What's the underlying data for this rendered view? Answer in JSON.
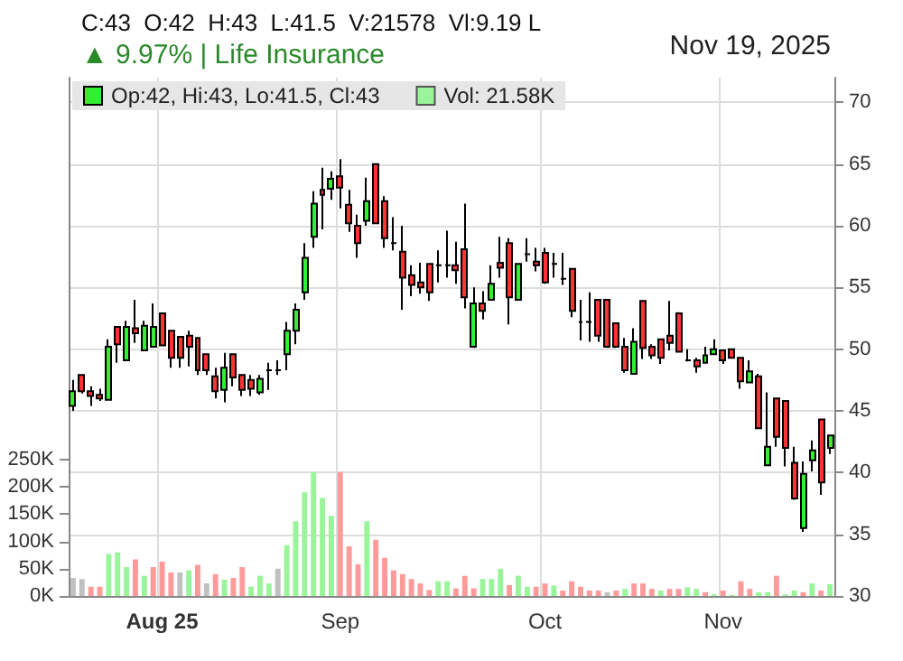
{
  "chart_data": {
    "type": "candlestick",
    "title": "C:43  O:42  H:43  L:41.5  V:21578  Vl:9.19 L",
    "subtitle": "▲ 9.97% | Life Insurance",
    "annotations": [
      "Nov 19, 2025"
    ],
    "categories": [
      null,
      null,
      null,
      null,
      null,
      null,
      null,
      null,
      null,
      null,
      "Aug 25",
      null,
      null,
      null,
      null,
      null,
      null,
      null,
      null,
      null,
      null,
      null,
      null,
      null,
      null,
      null,
      null,
      null,
      null,
      null,
      "Sep",
      null,
      null,
      null,
      null,
      null,
      null,
      null,
      null,
      null,
      null,
      null,
      null,
      null,
      null,
      null,
      null,
      null,
      null,
      null,
      null,
      null,
      null,
      "Oct",
      null,
      null,
      null,
      null,
      null,
      null,
      null,
      null,
      null,
      null,
      null,
      null,
      null,
      null,
      null,
      null,
      null,
      null,
      null,
      "Nov",
      null,
      null,
      null,
      null,
      null,
      null,
      null,
      null,
      null,
      null,
      null,
      null
    ],
    "series": [
      {
        "name": "Op:42, Hi:43, Lo:41.5, Cl:43",
        "color": "#33ee33",
        "ohlc": [
          [
            45.4,
            47.5,
            45.0,
            46.6
          ],
          [
            47.9,
            47.9,
            46.4,
            46.6
          ],
          [
            46.6,
            47.0,
            45.4,
            46.2
          ],
          [
            46.3,
            46.8,
            45.8,
            46.0
          ],
          [
            45.9,
            50.8,
            45.9,
            50.2
          ],
          [
            51.8,
            51.8,
            48.9,
            50.4
          ],
          [
            49.1,
            52.3,
            49.1,
            51.8
          ],
          [
            51.7,
            54.0,
            50.5,
            51.3
          ],
          [
            49.9,
            52.3,
            49.9,
            51.9
          ],
          [
            50.2,
            53.7,
            50.2,
            51.8
          ],
          [
            52.9,
            52.9,
            50.3,
            50.3
          ],
          [
            51.5,
            51.5,
            48.5,
            49.3
          ],
          [
            51.0,
            51.0,
            48.5,
            49.3
          ],
          [
            51.1,
            51.5,
            48.6,
            50.2
          ],
          [
            50.9,
            50.9,
            47.9,
            48.3
          ],
          [
            49.6,
            49.6,
            47.9,
            48.3
          ],
          [
            47.8,
            48.5,
            46.0,
            46.6
          ],
          [
            46.7,
            49.7,
            45.7,
            48.5
          ],
          [
            49.6,
            49.6,
            47.0,
            47.7
          ],
          [
            47.9,
            47.9,
            46.2,
            46.7
          ],
          [
            47.5,
            47.9,
            46.2,
            46.8
          ],
          [
            46.5,
            47.9,
            46.3,
            47.6
          ],
          [
            48.3,
            48.9,
            46.7,
            48.3
          ],
          [
            48.3,
            49.1,
            47.9,
            48.3
          ],
          [
            49.6,
            52.2,
            48.3,
            51.5
          ],
          [
            51.5,
            53.7,
            50.4,
            53.2
          ],
          [
            54.6,
            58.6,
            54.0,
            57.4
          ],
          [
            59.1,
            62.8,
            58.2,
            61.8
          ],
          [
            62.9,
            64.7,
            59.7,
            62.5
          ],
          [
            63.0,
            64.4,
            62.1,
            63.8
          ],
          [
            64.0,
            65.4,
            61.4,
            63.1
          ],
          [
            61.7,
            62.9,
            59.5,
            60.2
          ],
          [
            60.0,
            60.9,
            57.4,
            58.6
          ],
          [
            60.4,
            63.9,
            60.0,
            62.0
          ],
          [
            65.0,
            65.0,
            60.2,
            60.2
          ],
          [
            62.0,
            62.4,
            58.2,
            59.0
          ],
          [
            58.6,
            60.7,
            58.0,
            58.6
          ],
          [
            57.9,
            60.0,
            53.2,
            55.8
          ],
          [
            56.0,
            56.8,
            54.3,
            55.2
          ],
          [
            55.4,
            57.0,
            54.5,
            55.0
          ],
          [
            56.9,
            56.9,
            53.9,
            54.6
          ],
          [
            56.8,
            58.0,
            55.4,
            56.8
          ],
          [
            56.8,
            59.6,
            55.8,
            56.8
          ],
          [
            56.8,
            58.7,
            55.3,
            56.4
          ],
          [
            58.1,
            61.8,
            53.3,
            54.2
          ],
          [
            50.2,
            55.0,
            50.1,
            53.7
          ],
          [
            53.7,
            54.7,
            52.4,
            53.1
          ],
          [
            54.0,
            56.8,
            54.0,
            55.3
          ],
          [
            57.0,
            59.1,
            55.8,
            56.6
          ],
          [
            58.6,
            59.0,
            52.0,
            54.2
          ],
          [
            54.0,
            56.9,
            54.0,
            56.9
          ],
          [
            57.7,
            59.0,
            57.1,
            57.7
          ],
          [
            57.1,
            58.2,
            56.3,
            56.8
          ],
          [
            57.8,
            58.2,
            55.3,
            55.4
          ],
          [
            56.9,
            57.8,
            55.8,
            56.9
          ],
          [
            55.7,
            57.8,
            55.2,
            55.7
          ],
          [
            56.5,
            56.5,
            52.6,
            53.1
          ],
          [
            52.2,
            54.0,
            50.7,
            52.2
          ],
          [
            52.2,
            54.6,
            50.6,
            52.2
          ],
          [
            54.0,
            54.0,
            50.6,
            51.1
          ],
          [
            54.0,
            54.0,
            50.1,
            50.2
          ],
          [
            52.1,
            52.1,
            50.1,
            50.2
          ],
          [
            50.2,
            50.9,
            48.1,
            48.3
          ],
          [
            48.0,
            51.7,
            48.0,
            50.6
          ],
          [
            53.9,
            53.9,
            49.2,
            50.1
          ],
          [
            50.2,
            50.4,
            49.2,
            49.5
          ],
          [
            50.8,
            50.8,
            48.8,
            49.3
          ],
          [
            51.1,
            53.9,
            49.9,
            50.5
          ],
          [
            52.9,
            53.0,
            49.8,
            49.8
          ],
          [
            49.1,
            50.0,
            49.0,
            49.1
          ],
          [
            49.1,
            49.3,
            48.1,
            48.6
          ],
          [
            48.9,
            50.2,
            48.9,
            49.5
          ],
          [
            49.6,
            50.8,
            49.6,
            50.0
          ],
          [
            49.9,
            49.9,
            48.8,
            49.1
          ],
          [
            50.0,
            50.0,
            49.3,
            49.3
          ],
          [
            49.3,
            49.3,
            46.8,
            47.4
          ],
          [
            47.3,
            49.1,
            47.3,
            48.2
          ],
          [
            47.8,
            48.0,
            43.6,
            43.6
          ],
          [
            40.6,
            46.5,
            40.6,
            42.1
          ],
          [
            46.0,
            46.0,
            42.1,
            42.9
          ],
          [
            45.8,
            45.8,
            40.5,
            42.0
          ],
          [
            40.8,
            42.1,
            37.8,
            37.9
          ],
          [
            35.5,
            40.9,
            35.2,
            39.9
          ],
          [
            41.0,
            42.6,
            40.1,
            41.8
          ],
          [
            44.3,
            44.3,
            38.2,
            39.2
          ],
          [
            42,
            43,
            41.5,
            43
          ]
        ],
        "colors": [
          "#33ee33",
          "#ff3333",
          "#ff3333",
          "#ff3333",
          "#33ee33",
          "#ff3333",
          "#33ee33",
          "#ff3333",
          "#33ee33",
          "#33ee33",
          "#ff3333",
          "#ff3333",
          "#ff3333",
          "#ff3333",
          "#ff3333",
          "#ff3333",
          "#ff3333",
          "#33ee33",
          "#ff3333",
          "#ff3333",
          "#ff3333",
          "#33ee33",
          "#000000",
          "#000000",
          "#33ee33",
          "#33ee33",
          "#33ee33",
          "#33ee33",
          "#ff3333",
          "#33ee33",
          "#ff3333",
          "#ff3333",
          "#ff3333",
          "#33ee33",
          "#ff3333",
          "#ff3333",
          "#000000",
          "#ff3333",
          "#ff3333",
          "#ff3333",
          "#ff3333",
          "#000000",
          "#000000",
          "#ff3333",
          "#ff3333",
          "#33ee33",
          "#ff3333",
          "#33ee33",
          "#ff3333",
          "#ff3333",
          "#33ee33",
          "#000000",
          "#ff3333",
          "#ff3333",
          "#000000",
          "#000000",
          "#ff3333",
          "#000000",
          "#000000",
          "#ff3333",
          "#ff3333",
          "#ff3333",
          "#ff3333",
          "#33ee33",
          "#ff3333",
          "#ff3333",
          "#ff3333",
          "#ff3333",
          "#ff3333",
          "#000000",
          "#ff3333",
          "#33ee33",
          "#33ee33",
          "#ff3333",
          "#ff3333",
          "#ff3333",
          "#33ee33",
          "#ff3333",
          "#33ee33",
          "#ff3333",
          "#ff3333",
          "#ff3333",
          "#33ee33",
          "#33ee33",
          "#ff3333",
          "#33ee33"
        ]
      },
      {
        "type": "bar",
        "axis": "y2",
        "name": "Vol: 21.58K",
        "color": "#9af59a",
        "values": [
          33,
          31,
          17,
          17,
          77,
          80,
          53,
          67,
          37,
          53,
          63,
          43,
          43,
          47,
          57,
          23,
          40,
          30,
          33,
          53,
          17,
          37,
          23,
          50,
          93,
          137,
          190,
          227,
          180,
          147,
          227,
          91,
          58,
          137,
          103,
          70,
          47,
          40,
          31,
          23,
          11,
          27,
          27,
          14,
          37,
          14,
          31,
          31,
          50,
          20,
          37,
          17,
          17,
          23,
          19,
          10,
          27,
          17,
          10,
          10,
          7,
          10,
          13,
          23,
          23,
          13,
          10,
          13,
          13,
          16,
          13,
          7,
          3,
          10,
          2,
          27,
          13,
          7,
          7,
          37,
          3,
          10,
          7,
          23,
          10,
          21.58
        ],
        "colors": [
          "#c0c0c0",
          "#c0c0c0",
          "#ff9a9a",
          "#ff9a9a",
          "#9af59a",
          "#9af59a",
          "#9af59a",
          "#ff9a9a",
          "#9af59a",
          "#ff9a9a",
          "#ff9a9a",
          "#ff9a9a",
          "#c0c0c0",
          "#9af59a",
          "#ff9a9a",
          "#c0c0c0",
          "#ff9a9a",
          "#9af59a",
          "#ff9a9a",
          "#ff9a9a",
          "#9af59a",
          "#9af59a",
          "#9af59a",
          "#c0c0c0",
          "#9af59a",
          "#9af59a",
          "#9af59a",
          "#9af59a",
          "#9af59a",
          "#9af59a",
          "#ff9a9a",
          "#ff9a9a",
          "#ff9a9a",
          "#9af59a",
          "#ff9a9a",
          "#ff9a9a",
          "#ff9a9a",
          "#ff9a9a",
          "#ff9a9a",
          "#ff9a9a",
          "#ff9a9a",
          "#9af59a",
          "#9af59a",
          "#ff9a9a",
          "#ff9a9a",
          "#ff9a9a",
          "#9af59a",
          "#9af59a",
          "#9af59a",
          "#ff9a9a",
          "#9af59a",
          "#9af59a",
          "#ff9a9a",
          "#ff9a9a",
          "#9af59a",
          "#ff9a9a",
          "#ff9a9a",
          "#ff9a9a",
          "#ff9a9a",
          "#ff9a9a",
          "#c0c0c0",
          "#ff9a9a",
          "#9af59a",
          "#ff9a9a",
          "#ff9a9a",
          "#ff9a9a",
          "#9af59a",
          "#ff9a9a",
          "#ff9a9a",
          "#9af59a",
          "#9af59a",
          "#ff9a9a",
          "#9af59a",
          "#ff9a9a",
          "#9af59a",
          "#ff9a9a",
          "#ff9a9a",
          "#9af59a",
          "#9af59a",
          "#ff9a9a",
          "#9af59a",
          "#9af59a",
          "#ff9a9a",
          "#9af59a",
          "#ff9a9a",
          "#9af59a"
        ]
      }
    ],
    "ylim": [
      30,
      72
    ],
    "yticks": [
      30,
      35,
      40,
      45,
      50,
      55,
      60,
      65,
      70
    ],
    "y2lim": [
      0,
      950
    ],
    "y2ticks": [
      {
        "value": 0,
        "label": "0K"
      },
      {
        "value": 50,
        "label": "50K"
      },
      {
        "value": 100,
        "label": "100K"
      },
      {
        "value": 150,
        "label": "150K"
      },
      {
        "value": 200,
        "label": "200K"
      },
      {
        "value": 250,
        "label": "250K"
      }
    ],
    "grid": true,
    "legend": "top left"
  }
}
